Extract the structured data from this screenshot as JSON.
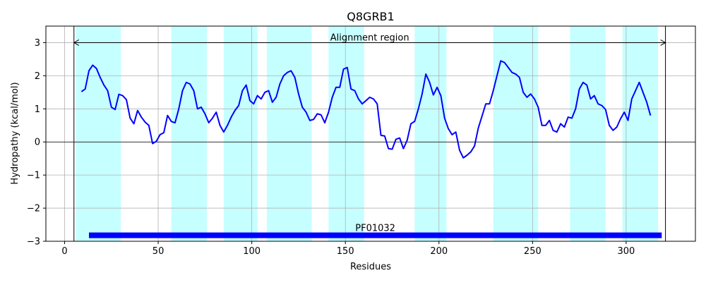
{
  "chart_data": {
    "type": "line",
    "title": "Q8GRB1",
    "xlabel": "Residues",
    "ylabel": "Hydropathy (kcal/mol)",
    "xlim": [
      -10,
      337
    ],
    "ylim": [
      -3,
      3.5
    ],
    "x_ticks": [
      0,
      50,
      100,
      150,
      200,
      250,
      300
    ],
    "y_ticks": [
      -3,
      -2,
      -1,
      0,
      1,
      2,
      3
    ],
    "x_tick_labels": [
      "0",
      "50",
      "100",
      "150",
      "200",
      "250",
      "300"
    ],
    "y_tick_labels": [
      "−3",
      "−2",
      "−1",
      "0",
      "1",
      "2",
      "3"
    ],
    "grid": true,
    "line_color": "#0000ff",
    "band_color": "#c6ffff",
    "series": [
      {
        "x": [
          9,
          11,
          13,
          15,
          17,
          19,
          21,
          23,
          25,
          27,
          29,
          31,
          33,
          35,
          37,
          39,
          41,
          43,
          45,
          47,
          49,
          51,
          53,
          55,
          57,
          59,
          61,
          63,
          65,
          67,
          69,
          71,
          73,
          75,
          77,
          79,
          81,
          83,
          85,
          87,
          89,
          91,
          93,
          95,
          97,
          99,
          101,
          103,
          105,
          107,
          109,
          111,
          113,
          115,
          117,
          119,
          121,
          123,
          125,
          127,
          129,
          131,
          133,
          135,
          137,
          139,
          141,
          143,
          145,
          147,
          149,
          151,
          153,
          155,
          157,
          159,
          161,
          163,
          165,
          167,
          169,
          171,
          173,
          175,
          177,
          179,
          181,
          183,
          185,
          187,
          189,
          191,
          193,
          195,
          197,
          199,
          201,
          203,
          205,
          207,
          209,
          211,
          213,
          215,
          217,
          219,
          221,
          223,
          225,
          227,
          229,
          231,
          233,
          235,
          237,
          239,
          241,
          243,
          245,
          247,
          249,
          251,
          253,
          255,
          257,
          259,
          261,
          263,
          265,
          267,
          269,
          271,
          273,
          275,
          277,
          279,
          281,
          283,
          285,
          287,
          289,
          291,
          293,
          295,
          297,
          299,
          301,
          303,
          305,
          307,
          309,
          311,
          313
        ],
        "y": [
          1.52,
          1.6,
          2.15,
          2.32,
          2.22,
          1.95,
          1.72,
          1.55,
          1.05,
          0.98,
          1.44,
          1.4,
          1.28,
          0.72,
          0.55,
          0.95,
          0.75,
          0.6,
          0.5,
          -0.05,
          0.02,
          0.22,
          0.28,
          0.8,
          0.62,
          0.58,
          1.0,
          1.55,
          1.8,
          1.75,
          1.55,
          1.0,
          1.05,
          0.85,
          0.58,
          0.72,
          0.9,
          0.5,
          0.3,
          0.5,
          0.75,
          0.95,
          1.1,
          1.55,
          1.72,
          1.25,
          1.15,
          1.4,
          1.3,
          1.5,
          1.55,
          1.2,
          1.35,
          1.75,
          2.0,
          2.1,
          2.15,
          1.95,
          1.45,
          1.05,
          0.9,
          0.65,
          0.68,
          0.85,
          0.82,
          0.58,
          0.9,
          1.35,
          1.65,
          1.65,
          2.2,
          2.25,
          1.6,
          1.55,
          1.3,
          1.15,
          1.25,
          1.35,
          1.3,
          1.15,
          0.2,
          0.18,
          -0.2,
          -0.22,
          0.08,
          0.12,
          -0.2,
          0.05,
          0.55,
          0.62,
          1.0,
          1.45,
          2.05,
          1.8,
          1.42,
          1.65,
          1.4,
          0.72,
          0.4,
          0.22,
          0.3,
          -0.25,
          -0.48,
          -0.4,
          -0.3,
          -0.12,
          0.42,
          0.78,
          1.15,
          1.15,
          1.55,
          2.0,
          2.45,
          2.4,
          2.25,
          2.1,
          2.05,
          1.95,
          1.5,
          1.35,
          1.45,
          1.3,
          1.05,
          0.5,
          0.5,
          0.65,
          0.35,
          0.3,
          0.55,
          0.45,
          0.75,
          0.72,
          1.0,
          1.6,
          1.8,
          1.72,
          1.3,
          1.4,
          1.15,
          1.1,
          0.98,
          0.5,
          0.35,
          0.45,
          0.7,
          0.9,
          0.65,
          1.3,
          1.55,
          1.8,
          1.5,
          1.2,
          0.8
        ]
      }
    ],
    "bands": [
      [
        6,
        30
      ],
      [
        57,
        76
      ],
      [
        85,
        103
      ],
      [
        108,
        132
      ],
      [
        141,
        160
      ],
      [
        187,
        204
      ],
      [
        229,
        253
      ],
      [
        270,
        289
      ],
      [
        298,
        317
      ]
    ],
    "vlines": [
      5,
      321
    ],
    "alignment_arrow": {
      "x_start": 5,
      "x_end": 321,
      "y": 3,
      "label": "Alignment region"
    },
    "domain_bar": {
      "x_start": 13,
      "x_end": 319,
      "y": -2.82,
      "label": "PF01032",
      "color": "#0000ff"
    }
  }
}
